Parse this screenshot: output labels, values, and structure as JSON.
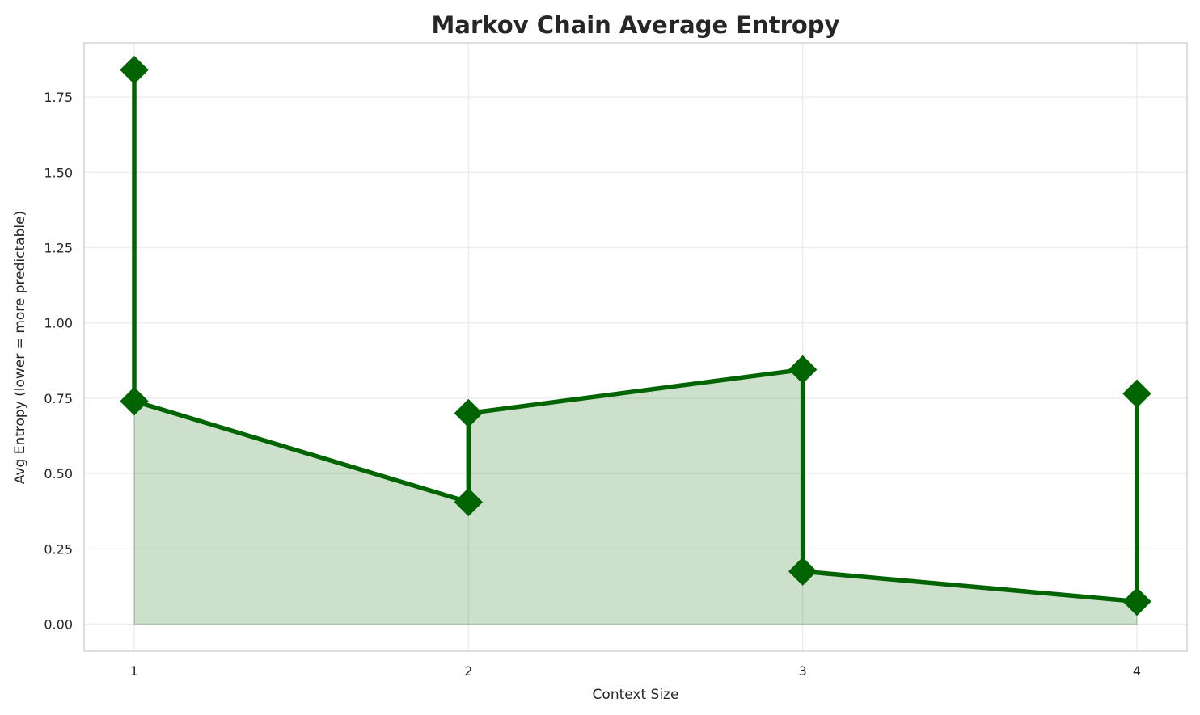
{
  "chart_data": {
    "type": "line",
    "title": "Markov Chain Average Entropy",
    "xlabel": "Context Size",
    "ylabel": "Avg Entropy (lower = more predictable)",
    "x_ticks": [
      1,
      2,
      3,
      4
    ],
    "x_tick_labels": [
      "1",
      "2",
      "3",
      "4"
    ],
    "y_ticks": [
      0,
      0.25,
      0.5,
      0.75,
      1.0,
      1.25,
      1.5,
      1.75
    ],
    "y_tick_labels": [
      "0.00",
      "0.25",
      "0.50",
      "0.75",
      "1.00",
      "1.25",
      "1.50",
      "1.75"
    ],
    "xlim": [
      0.85,
      4.15
    ],
    "ylim": [
      -0.09,
      1.93
    ],
    "grid": true,
    "legend": "none",
    "series": [
      {
        "x": [
          1,
          1,
          2,
          2,
          3,
          3,
          4,
          4
        ],
        "values": [
          1.84,
          0.74,
          0.405,
          0.7,
          0.845,
          0.175,
          0.075,
          0.765
        ],
        "color": "#006400",
        "fill_color": "#006400",
        "marker": "diamond"
      }
    ]
  }
}
